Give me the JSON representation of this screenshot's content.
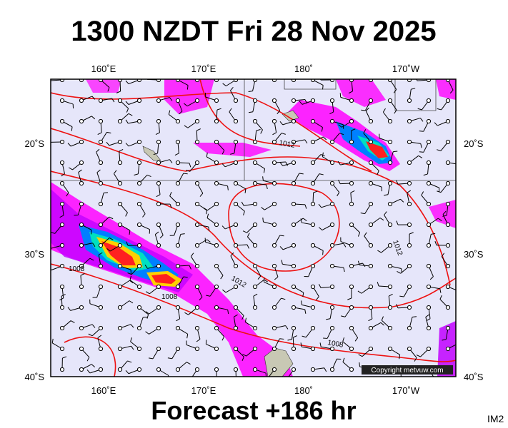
{
  "title": "1300 NZDT Fri 28 Nov 2025",
  "footer": "Forecast +186 hr",
  "image_id": "IM2",
  "copyright": "Copyright metvuw.com",
  "lon_labels": [
    "160˚E",
    "170˚E",
    "180˚",
    "170˚W"
  ],
  "lat_labels": [
    "20˚S",
    "30˚S",
    "40˚S"
  ],
  "isobar_labels": [
    "1012",
    "1008",
    "1012",
    "1008",
    "1008",
    "1012"
  ]
}
